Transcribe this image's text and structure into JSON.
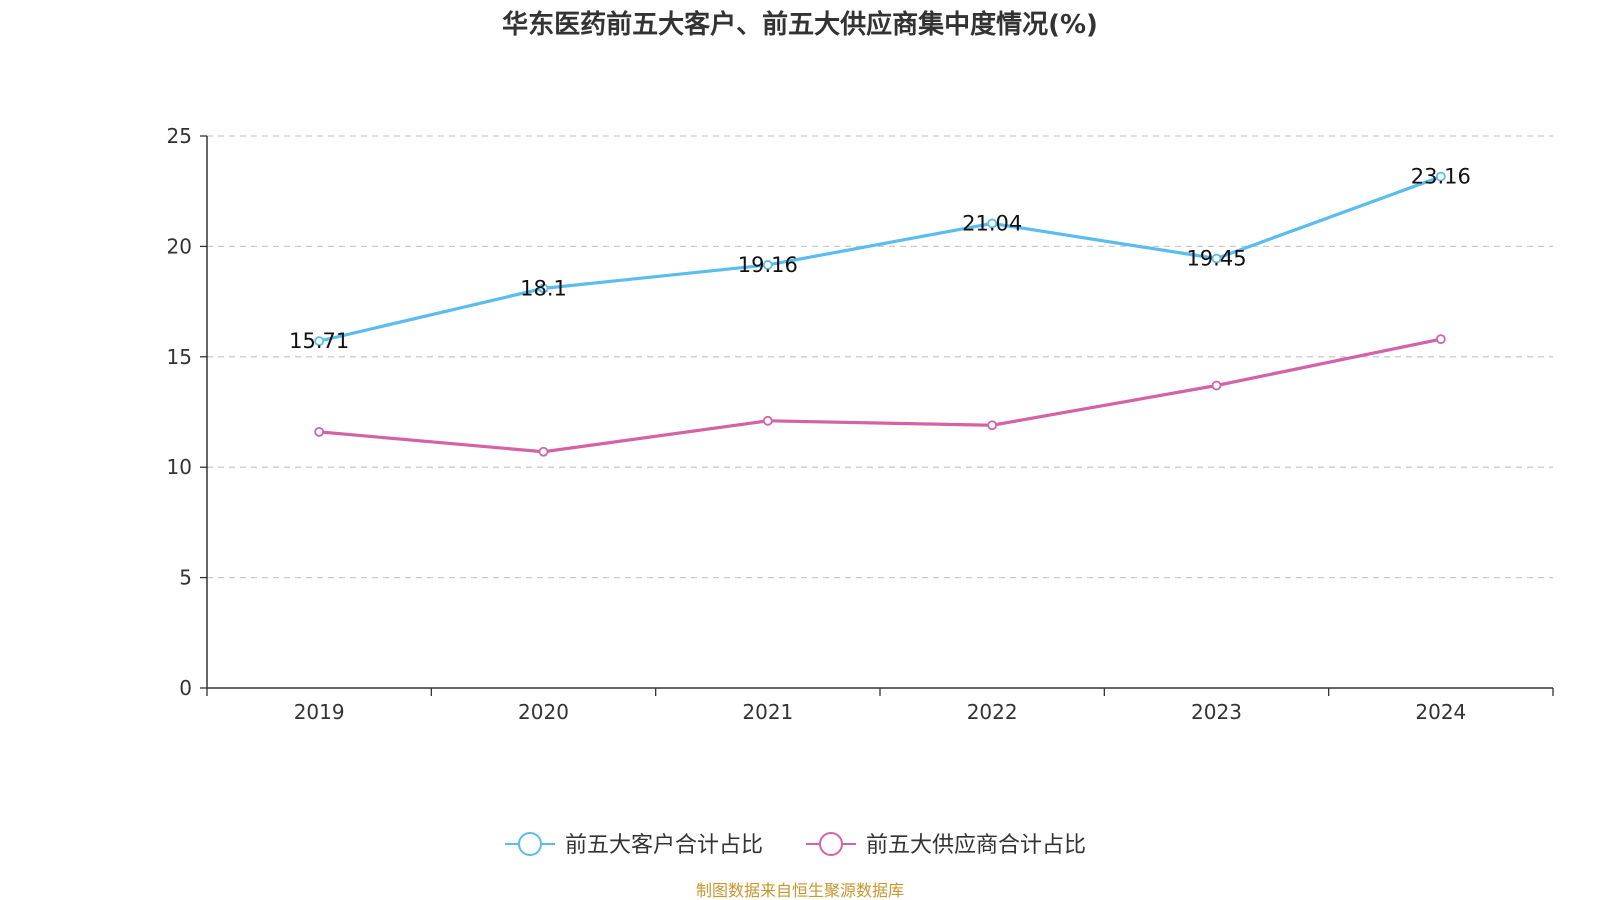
{
  "chart_data": {
    "type": "line",
    "title": "华东医药前五大客户、前五大供应商集中度情况(%)",
    "categories": [
      "2019",
      "2020",
      "2021",
      "2022",
      "2023",
      "2024"
    ],
    "ylim": [
      0,
      25
    ],
    "yticks": [
      0,
      5,
      10,
      15,
      20,
      25
    ],
    "grid": "horizontal dashed",
    "legend_position": "bottom-center",
    "series": [
      {
        "name": "前五大客户合计占比",
        "color": "#5bbcef",
        "values": [
          15.71,
          18.1,
          19.16,
          21.04,
          19.45,
          23.16
        ],
        "labels": [
          "15.71",
          "18.1",
          "19.16",
          "21.04",
          "19.45",
          "23.16"
        ],
        "show_labels": true
      },
      {
        "name": "前五大供应商合计占比",
        "color": "#d462a6",
        "values": [
          11.6,
          10.7,
          12.1,
          11.9,
          13.7,
          15.8
        ],
        "show_labels": false
      }
    ]
  },
  "source": {
    "text": "制图数据来自恒生聚源数据库",
    "color": "#c8962e"
  }
}
